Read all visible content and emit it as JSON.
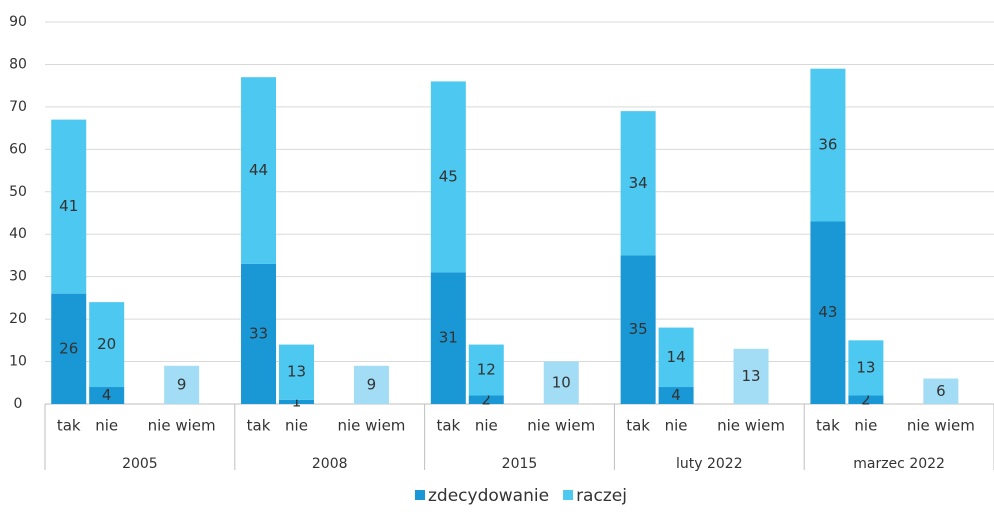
{
  "chart_data": {
    "type": "bar",
    "stacked": true,
    "categories": [
      "tak",
      "nie",
      "nie wiem",
      "tak",
      "nie",
      "nie wiem",
      "tak",
      "nie",
      "nie wiem",
      "tak",
      "nie",
      "nie wiem",
      "tak",
      "nie",
      "nie wiem"
    ],
    "groups": [
      "2005",
      "2008",
      "2015",
      "luty 2022",
      "marzec 2022"
    ],
    "series": [
      {
        "name": "zdecydowanie",
        "color": "#1a98d5",
        "values": [
          26,
          4,
          null,
          33,
          1,
          null,
          31,
          2,
          null,
          35,
          4,
          null,
          43,
          2,
          null
        ]
      },
      {
        "name": "raczej",
        "color": "#4dc8f0",
        "values": [
          41,
          20,
          null,
          44,
          13,
          null,
          45,
          12,
          null,
          34,
          14,
          null,
          36,
          13,
          null
        ]
      },
      {
        "color": "#a3dcf5",
        "values": [
          null,
          null,
          9,
          null,
          null,
          9,
          null,
          null,
          10,
          null,
          null,
          13,
          null,
          null,
          6
        ]
      }
    ],
    "ylim": [
      0,
      90
    ],
    "yticks": [
      0,
      10,
      20,
      30,
      40,
      50,
      60,
      70,
      80,
      90
    ],
    "grid": true,
    "legend": "bottom"
  }
}
